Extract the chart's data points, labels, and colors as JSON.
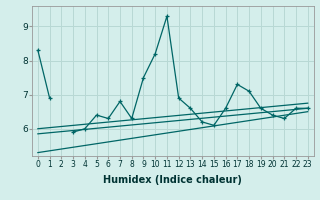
{
  "title": "",
  "xlabel": "Humidex (Indice chaleur)",
  "ylabel": "",
  "background_color": "#d4eeeb",
  "grid_color": "#b8d8d4",
  "line_color": "#006666",
  "x": [
    0,
    1,
    2,
    3,
    4,
    5,
    6,
    7,
    8,
    9,
    10,
    11,
    12,
    13,
    14,
    15,
    16,
    17,
    18,
    19,
    20,
    21,
    22,
    23
  ],
  "series1": [
    8.3,
    6.9,
    null,
    5.9,
    6.0,
    6.4,
    6.3,
    6.8,
    6.3,
    7.5,
    8.2,
    9.3,
    6.9,
    6.6,
    6.2,
    6.1,
    6.6,
    7.3,
    7.1,
    6.6,
    6.4,
    6.3,
    6.6,
    6.6
  ],
  "reg_lines": [
    [
      [
        0,
        5.3
      ],
      [
        23,
        6.5
      ]
    ],
    [
      [
        0,
        5.85
      ],
      [
        23,
        6.6
      ]
    ],
    [
      [
        0,
        6.0
      ],
      [
        23,
        6.75
      ]
    ]
  ],
  "ylim": [
    5.2,
    9.6
  ],
  "xlim": [
    -0.5,
    23.5
  ],
  "yticks": [
    6,
    7,
    8,
    9
  ],
  "xticks": [
    0,
    1,
    2,
    3,
    4,
    5,
    6,
    7,
    8,
    9,
    10,
    11,
    12,
    13,
    14,
    15,
    16,
    17,
    18,
    19,
    20,
    21,
    22,
    23
  ],
  "xlabel_fontsize": 7,
  "tick_fontsize": 5.5,
  "ytick_fontsize": 6.5
}
